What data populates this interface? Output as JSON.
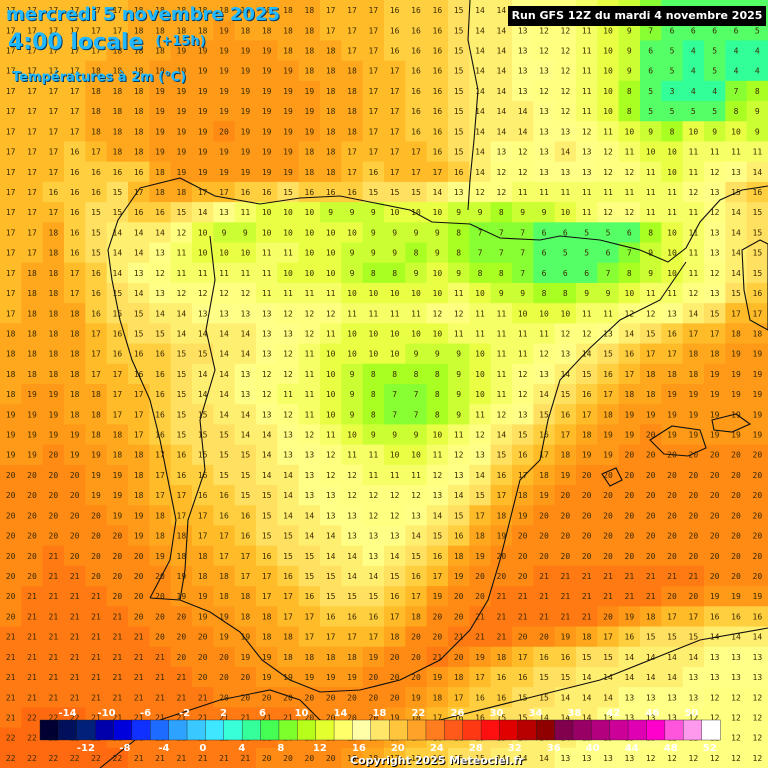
{
  "header": {
    "date_line": "mercredi 5 novembre 2025",
    "time_line": "4:00 locale",
    "lead_time": "(+15h)",
    "variable": "Températures à 2m (°C)",
    "run_info": "Run GFS 12Z du mardi 4 novembre 2025"
  },
  "footer": {
    "copyright": "Copyright 2025 Meteociel.fr"
  },
  "legend": {
    "top_labels": [
      "-14",
      "-10",
      "-6",
      "-2",
      "2",
      "6",
      "10",
      "14",
      "18",
      "22",
      "26",
      "30",
      "34",
      "38",
      "42",
      "46",
      "50"
    ],
    "bottom_labels": [
      "-12",
      "-8",
      "-4",
      "0",
      "4",
      "8",
      "12",
      "16",
      "20",
      "24",
      "28",
      "32",
      "36",
      "40",
      "44",
      "48",
      "52"
    ],
    "colors": [
      "#000033",
      "#00105a",
      "#00207a",
      "#0000aa",
      "#0000dd",
      "#1030ff",
      "#1e6bff",
      "#2ea2ff",
      "#39c8ff",
      "#3fe6ff",
      "#38ffd8",
      "#34ff9a",
      "#46ff55",
      "#7cff2a",
      "#b7ff1a",
      "#e4ff2e",
      "#ffff6a",
      "#ffffa8",
      "#ffe76a",
      "#ffc53c",
      "#ffa228",
      "#ff7d1e",
      "#ff5a1a",
      "#ff3814",
      "#ff1010",
      "#e00000",
      "#b80000",
      "#900000",
      "#80004d",
      "#990066",
      "#b3007f",
      "#cc0099",
      "#e000b3",
      "#ff00cc",
      "#ff55dd",
      "#ff99ee",
      "#ffffff"
    ]
  },
  "map_data": {
    "rows": [
      "17 17 17 17 17 17 18 18 18 18 18 18 18 18 18 17 17 17 16 16 16 15 14 14 13 12 12 11 10 9 7 6 6 6 6 6",
      "17 17 17 17 17 17 18 18 18 18 19 18 18 18 18 17 17 17 16 16 16 15 14 14 13 12 12 11 10 9 7 6 6 6 6 5",
      "17 17 17 17 17 18 18 18 19 19 19 19 19 18 18 18 17 17 16 16 16 15 14 14 13 12 12 11 10 9 6 5 4 5 4 4",
      "17 17 17 17 18 18 18 19 19 19 19 19 19 19 18 18 18 17 17 16 16 15 14 14 13 13 12 11 10 9 6 5 4 5 4 4",
      "17 17 17 17 18 18 18 19 19 19 19 19 19 19 19 18 18 17 17 16 16 15 14 14 13 12 12 11 10 8 5 3 4 4 7 8",
      "17 17 17 17 18 18 18 19 19 19 19 19 19 19 19 18 18 17 17 16 16 15 14 14 14 13 12 11 10 8 5 5 5 5 8 9",
      "17 17 17 17 18 18 18 19 19 19 20 19 19 19 19 18 18 17 17 16 16 15 14 14 14 13 13 12 11 10 9 8 10 9 10 9",
      "17 17 17 16 17 18 18 19 19 19 19 19 19 19 18 18 17 17 17 17 16 15 14 13 12 13 14 13 12 11 10 10 11 11 11 11",
      "17 17 17 16 16 16 16 18 19 19 19 19 19 19 18 18 17 16 17 17 17 16 14 12 12 13 13 13 12 12 11 10 11 12 13 14",
      "17 17 16 16 16 15 17 18 18 17 17 16 16 15 16 16 16 15 15 15 14 13 12 12 11 11 11 11 11 11 11 11 12 13 15 16",
      "17 17 17 16 15 15 16 16 15 14 13 11 10 10 10 9 9 9 10 10 10 9 9 8 9 9 10 11 12 12 11 11 11 12 14 15",
      "17 17 18 16 15 14 14 14 12 10 9 9 10 10 10 10 10 9 9 9 9 8 7 7 7 6 6 5 5 6 8 10 11 13 14 15",
      "17 17 18 16 15 14 14 13 11 10 10 10 11 11 10 10 9 9 9 8 9 8 7 7 7 6 5 5 6 7 9 10 11 13 14 15",
      "17 18 18 17 16 14 13 12 11 11 11 11 11 10 10 10 9 8 8 9 10 9 8 8 7 6 6 6 7 8 9 10 11 12 14 15",
      "17 18 18 17 16 15 14 13 12 12 12 12 11 11 11 11 10 10 10 10 10 11 10 9 9 8 8 9 9 10 11 11 12 13 15 16",
      "17 18 18 18 16 15 15 14 14 13 13 13 13 12 12 12 11 11 11 11 12 12 11 11 10 10 10 11 11 12 12 13 14 15 17 17",
      "18 18 18 18 17 16 15 15 14 14 14 14 13 13 12 11 10 10 10 10 10 11 11 11 11 11 12 12 13 14 15 16 17 17 18 18",
      "18 18 18 18 17 16 16 16 15 15 14 14 13 12 11 10 10 10 10 9 9 9 10 11 11 12 13 14 15 16 17 17 18 18 19 19",
      "18 18 18 18 17 17 16 16 15 14 14 13 12 12 11 10 9 8 8 8 8 9 10 11 12 13 14 15 16 17 18 18 18 19 19 19",
      "18 19 19 18 18 17 17 16 15 14 14 13 12 11 11 10 9 8 7 7 8 9 10 11 12 14 15 16 17 18 18 19 19 19 19 19",
      "19 19 19 18 18 17 17 16 15 15 14 14 13 12 11 10 9 8 7 7 8 9 11 12 13 15 16 17 18 19 19 19 19 19 19 19",
      "19 19 19 19 18 18 17 16 15 15 15 14 14 13 12 11 10 9 9 9 10 11 12 14 15 16 17 18 19 19 20 19 19 19 19 19",
      "19 19 20 19 19 18 18 17 16 15 15 15 14 13 13 12 11 11 10 10 11 12 13 15 16 17 18 19 19 20 20 20 20 20 20 20",
      "20 20 20 20 19 19 18 17 16 16 15 15 14 14 13 12 12 11 11 11 12 13 14 16 17 18 19 20 20 20 20 20 20 20 20 20",
      "20 20 20 20 19 19 18 17 17 16 16 15 15 14 13 13 12 12 12 12 13 14 15 17 18 19 20 20 20 20 20 20 20 20 20 20",
      "20 20 20 20 20 19 19 18 17 17 16 16 15 14 14 13 13 12 12 13 14 15 17 18 19 20 20 20 20 20 20 20 20 20 20 20",
      "20 20 20 20 20 20 19 18 18 17 17 16 15 15 14 14 13 13 13 14 15 16 18 19 20 20 20 20 20 20 20 20 20 20 20 20",
      "20 20 21 20 20 20 20 19 18 18 17 17 16 15 15 14 14 13 14 15 16 18 19 20 20 20 20 20 20 20 20 20 20 20 20 20",
      "20 20 21 21 20 20 20 20 19 18 18 17 17 16 15 15 14 14 15 16 17 19 20 20 20 21 21 21 21 21 21 21 21 20 20 20",
      "20 21 21 21 21 20 20 20 19 19 18 18 17 17 16 15 15 15 16 17 19 20 20 21 21 21 21 21 21 21 21 20 20 19 19 19",
      "20 21 21 21 21 21 20 20 20 19 19 18 18 17 17 16 16 16 17 18 20 20 21 21 21 21 21 21 20 19 18 17 17 16 16 16",
      "21 21 21 21 21 21 21 20 20 20 19 19 18 18 17 17 17 17 18 20 20 21 21 21 20 20 19 18 17 16 15 15 15 14 14 14",
      "21 21 21 21 21 21 21 21 20 20 20 19 19 18 18 18 18 19 20 20 21 20 19 18 17 16 16 15 15 14 14 14 14 13 13 13",
      "21 21 21 21 21 21 21 21 21 20 20 20 19 19 19 19 19 20 20 20 19 18 17 16 16 15 15 14 14 14 14 14 13 13 13 13",
      "21 21 21 21 21 21 21 21 21 21 20 20 20 20 20 20 20 20 20 19 18 17 16 16 15 15 14 14 14 13 13 13 13 12 12 12",
      "21 22 22 22 21 21 21 21 21 21 21 21 21 21 20 20 20 20 19 18 17 16 16 15 15 14 14 14 13 13 13 13 12 12 12 12",
      "22 22 22 22 22 21 21 21 21 21 21 21 21 20 20 20 20 19 18 17 16 16 15 15 14 14 14 13 13 13 13 12 12 12 12 12",
      "22 22 22 22 22 22 21 21 21 21 21 21 20 20 20 20 19 18 17 16 16 15 15 14 14 14 13 13 13 13 12 12 12 12 12 12"
    ]
  }
}
